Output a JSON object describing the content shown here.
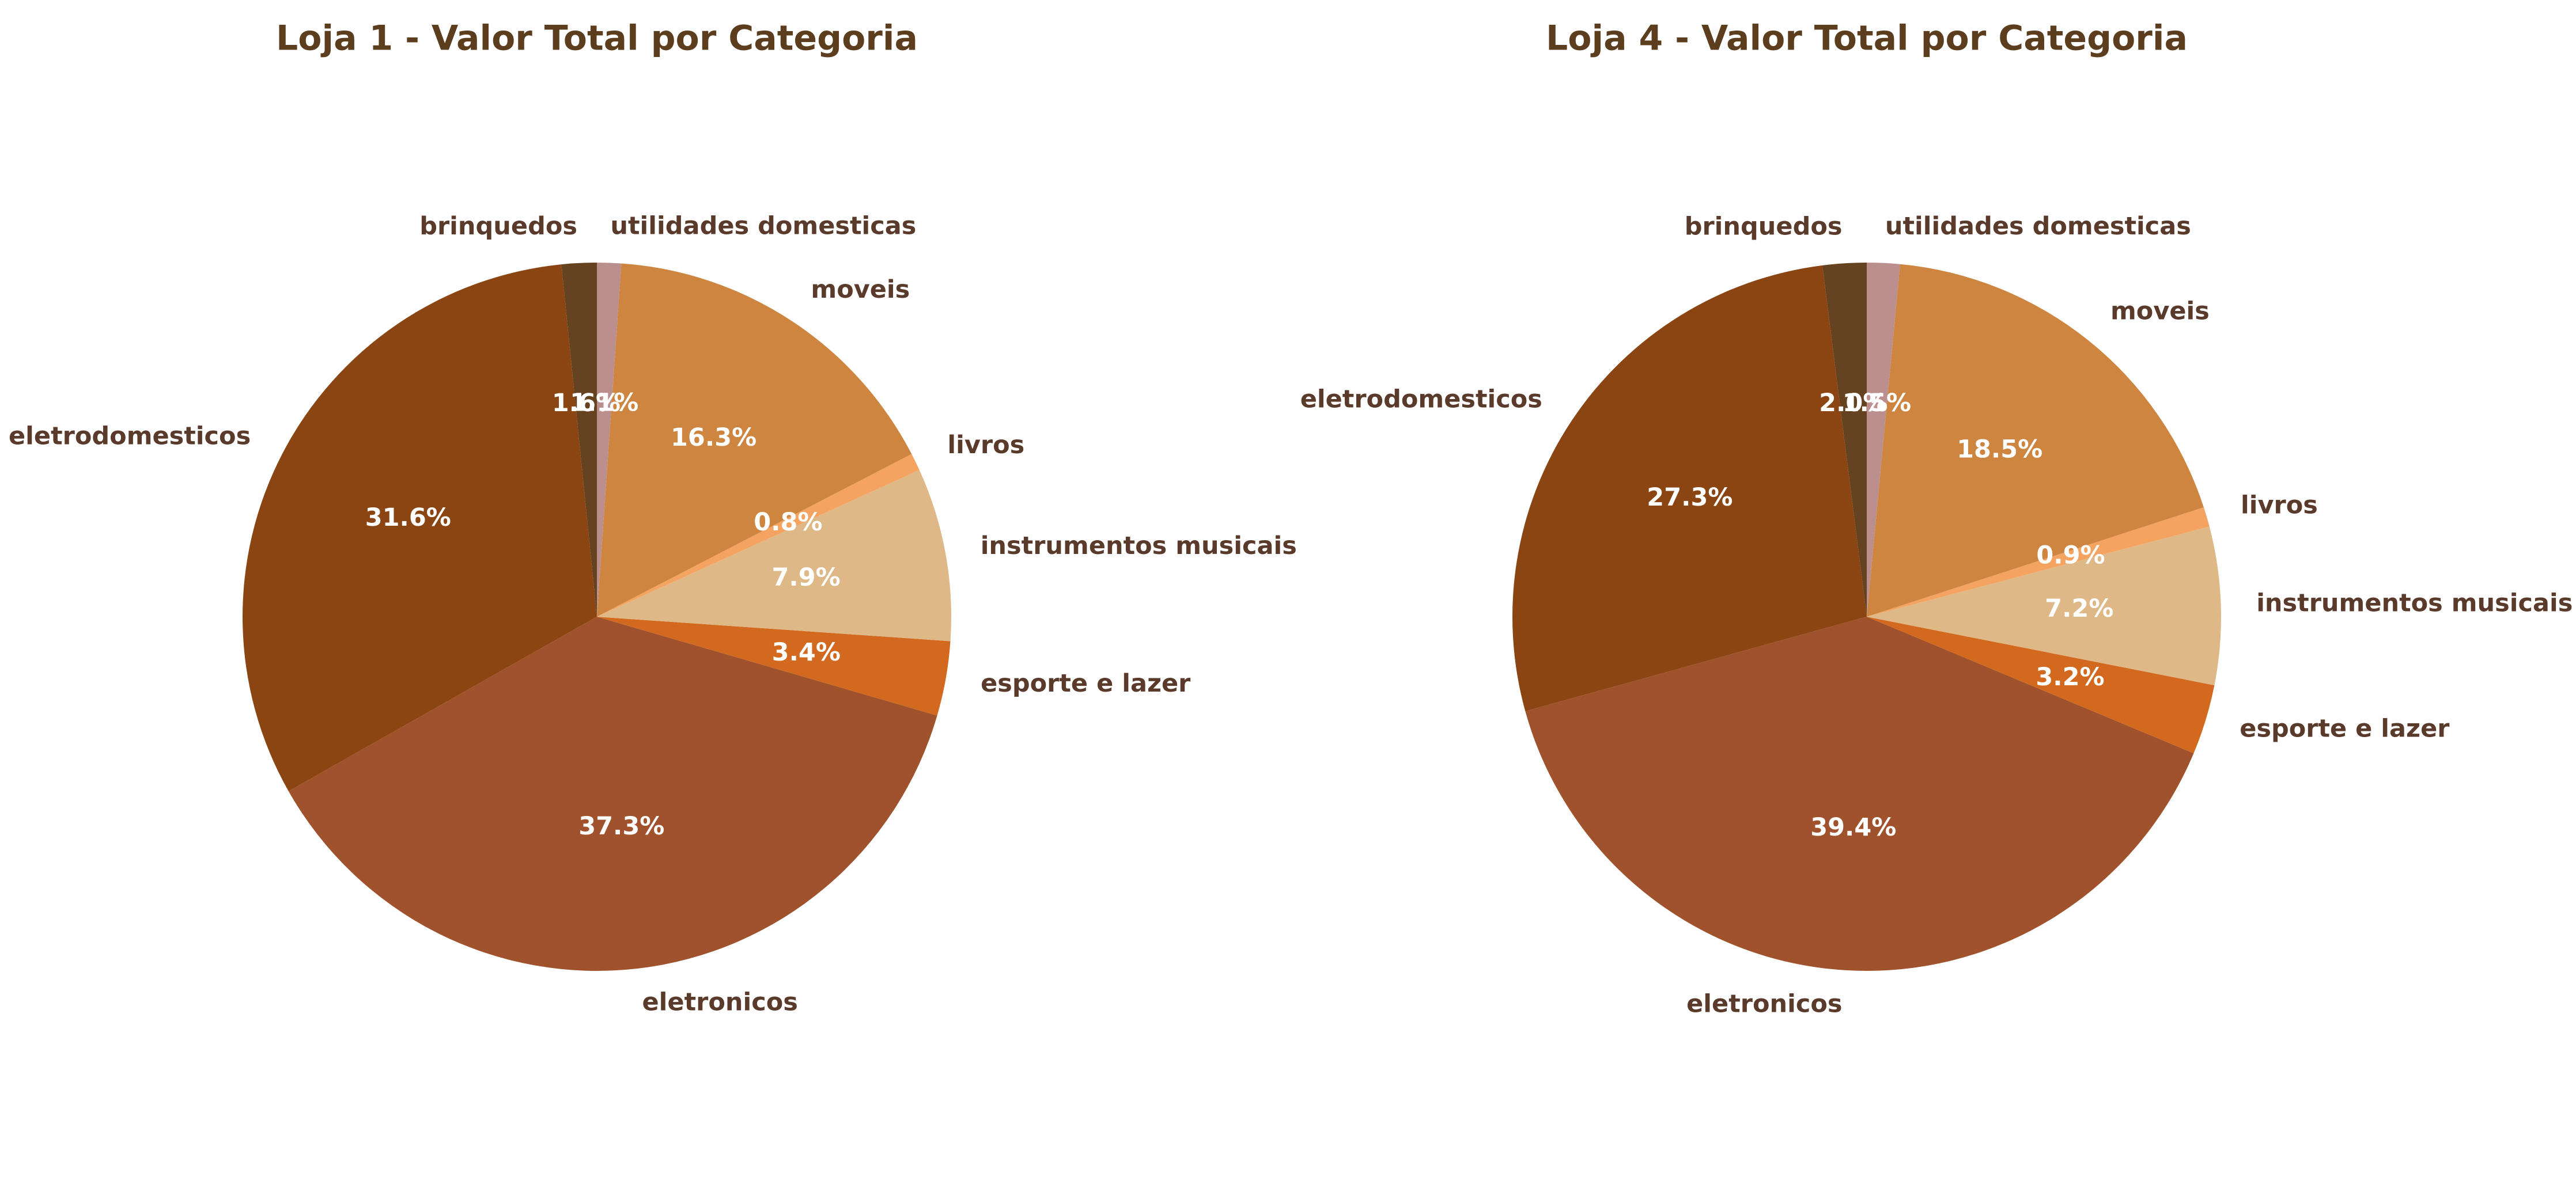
{
  "chart_data": [
    {
      "type": "pie",
      "title": "Loja 1 - Valor Total por Categoria",
      "start_angle_deg": 90,
      "direction": "counterclockwise",
      "slices": [
        {
          "label": "brinquedos",
          "value": 1.6,
          "pct_label": "1.6%",
          "color": "#654321"
        },
        {
          "label": "eletrodomesticos",
          "value": 31.6,
          "pct_label": "31.6%",
          "color": "#8B4513"
        },
        {
          "label": "eletronicos",
          "value": 37.3,
          "pct_label": "37.3%",
          "color": "#A0522D"
        },
        {
          "label": "esporte e lazer",
          "value": 3.4,
          "pct_label": "3.4%",
          "color": "#D2691E"
        },
        {
          "label": "instrumentos musicais",
          "value": 7.9,
          "pct_label": "7.9%",
          "color": "#DEB887"
        },
        {
          "label": "livros",
          "value": 0.8,
          "pct_label": "0.8%",
          "color": "#F4A460"
        },
        {
          "label": "moveis",
          "value": 16.3,
          "pct_label": "16.3%",
          "color": "#CD853F"
        },
        {
          "label": "utilidades domesticas",
          "value": 1.1,
          "pct_label": "1.1%",
          "color": "#BC8F8F"
        }
      ]
    },
    {
      "type": "pie",
      "title": "Loja 4 - Valor Total por Categoria",
      "start_angle_deg": 90,
      "direction": "counterclockwise",
      "slices": [
        {
          "label": "brinquedos",
          "value": 2.0,
          "pct_label": "2.0%",
          "color": "#654321"
        },
        {
          "label": "eletrodomesticos",
          "value": 27.3,
          "pct_label": "27.3%",
          "color": "#8B4513"
        },
        {
          "label": "eletronicos",
          "value": 39.4,
          "pct_label": "39.4%",
          "color": "#A0522D"
        },
        {
          "label": "esporte e lazer",
          "value": 3.2,
          "pct_label": "3.2%",
          "color": "#D2691E"
        },
        {
          "label": "instrumentos musicais",
          "value": 7.2,
          "pct_label": "7.2%",
          "color": "#DEB887"
        },
        {
          "label": "livros",
          "value": 0.9,
          "pct_label": "0.9%",
          "color": "#F4A460"
        },
        {
          "label": "moveis",
          "value": 18.5,
          "pct_label": "18.5%",
          "color": "#CD853F"
        },
        {
          "label": "utilidades domesticas",
          "value": 1.5,
          "pct_label": "1.5%",
          "color": "#BC8F8F"
        }
      ]
    }
  ]
}
